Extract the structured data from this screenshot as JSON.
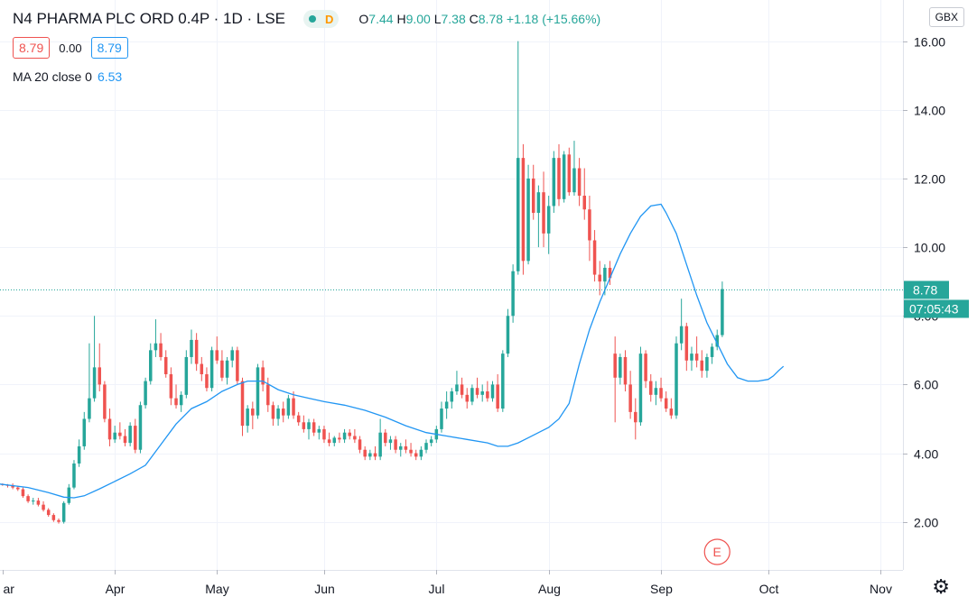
{
  "header": {
    "symbol": "N4 PHARMA PLC ORD 0.4P · 1D · LSE",
    "status_letter": "D",
    "ohlc": {
      "o_label": "O",
      "o": "7.44",
      "h_label": "H",
      "h": "9.00",
      "l_label": "L",
      "l": "7.38",
      "c_label": "C",
      "c": "8.78",
      "change": "+1.18 (+15.66%)"
    },
    "bid": "8.79",
    "spread": "0.00",
    "ask": "8.79",
    "ma_label": "MA 20 close 0",
    "ma_value": "6.53",
    "currency": "GBX"
  },
  "colors": {
    "up": "#26a69a",
    "down": "#ef5350",
    "ma": "#2196f3",
    "grid": "#f0f3fa",
    "axis": "#131722",
    "earnings": "#ef5350"
  },
  "icons": {
    "settings": "gear-icon",
    "status": "market-status-icon"
  },
  "chart_data": {
    "type": "candlestick",
    "y_ticks": [
      "2.00",
      "4.00",
      "6.00",
      "8.00",
      "10.00",
      "12.00",
      "14.00",
      "16.00"
    ],
    "ylim": [
      0.6,
      17.2
    ],
    "x_labels": [
      {
        "label": "ar",
        "day": 0
      },
      {
        "label": "Apr",
        "day": 22
      },
      {
        "label": "May",
        "day": 42
      },
      {
        "label": "Jun",
        "day": 63
      },
      {
        "label": "Jul",
        "day": 85
      },
      {
        "label": "Aug",
        "day": 107
      },
      {
        "label": "Sep",
        "day": 129
      },
      {
        "label": "Oct",
        "day": 150
      },
      {
        "label": "Nov",
        "day": 172
      }
    ],
    "x_range": [
      -0.5,
      176.4
    ],
    "last_price": {
      "value": 8.78,
      "label": "8.78",
      "countdown": "07:05:43"
    },
    "earnings": {
      "day": 140,
      "label": "E"
    },
    "candles": [
      [
        3.1,
        3.12,
        3.05,
        3.08
      ],
      [
        3.08,
        3.1,
        3.0,
        3.05
      ],
      [
        3.05,
        3.12,
        2.95,
        3.0
      ],
      [
        3.0,
        3.05,
        2.9,
        2.95
      ],
      [
        2.95,
        3.0,
        2.7,
        2.75
      ],
      [
        2.75,
        2.8,
        2.55,
        2.6
      ],
      [
        2.6,
        2.7,
        2.5,
        2.62
      ],
      [
        2.62,
        2.7,
        2.45,
        2.5
      ],
      [
        2.5,
        2.6,
        2.3,
        2.35
      ],
      [
        2.35,
        2.4,
        2.15,
        2.2
      ],
      [
        2.2,
        2.25,
        2.0,
        2.05
      ],
      [
        2.05,
        2.1,
        1.95,
        2.0
      ],
      [
        2.0,
        2.6,
        1.95,
        2.55
      ],
      [
        2.55,
        3.1,
        2.5,
        3.0
      ],
      [
        3.0,
        3.8,
        2.95,
        3.7
      ],
      [
        3.7,
        4.4,
        3.6,
        4.2
      ],
      [
        4.2,
        5.2,
        4.1,
        5.0
      ],
      [
        5.0,
        7.2,
        4.9,
        5.6
      ],
      [
        5.6,
        8.0,
        5.5,
        6.5
      ],
      [
        6.5,
        7.2,
        5.8,
        6.0
      ],
      [
        6.0,
        6.1,
        4.9,
        5.0
      ],
      [
        5.0,
        5.3,
        4.2,
        4.4
      ],
      [
        4.4,
        4.8,
        4.3,
        4.6
      ],
      [
        4.6,
        4.9,
        4.4,
        4.5
      ],
      [
        4.5,
        4.7,
        4.2,
        4.3
      ],
      [
        4.3,
        4.9,
        4.2,
        4.8
      ],
      [
        4.8,
        5.0,
        4.0,
        4.1
      ],
      [
        4.1,
        5.5,
        4.0,
        5.4
      ],
      [
        5.4,
        6.2,
        5.3,
        6.1
      ],
      [
        6.1,
        7.2,
        6.0,
        7.0
      ],
      [
        7.0,
        7.9,
        6.8,
        7.2
      ],
      [
        7.2,
        7.5,
        6.7,
        6.8
      ],
      [
        6.8,
        7.0,
        6.2,
        6.3
      ],
      [
        6.3,
        6.5,
        5.4,
        5.6
      ],
      [
        5.6,
        6.0,
        5.3,
        5.4
      ],
      [
        5.4,
        5.8,
        5.2,
        5.7
      ],
      [
        5.7,
        7.0,
        5.6,
        6.8
      ],
      [
        6.8,
        7.6,
        6.6,
        7.3
      ],
      [
        7.3,
        7.5,
        6.4,
        6.6
      ],
      [
        6.6,
        6.8,
        6.1,
        6.3
      ],
      [
        6.3,
        6.5,
        5.8,
        5.9
      ],
      [
        5.9,
        7.1,
        5.8,
        7.0
      ],
      [
        7.0,
        7.4,
        6.6,
        6.7
      ],
      [
        6.7,
        7.0,
        6.1,
        6.2
      ],
      [
        6.2,
        6.8,
        6.0,
        6.7
      ],
      [
        6.7,
        7.1,
        6.5,
        7.0
      ],
      [
        7.0,
        7.1,
        6.0,
        6.1
      ],
      [
        6.1,
        6.2,
        4.5,
        4.8
      ],
      [
        4.8,
        5.4,
        4.6,
        5.3
      ],
      [
        5.3,
        5.5,
        4.7,
        5.1
      ],
      [
        5.1,
        6.6,
        5.0,
        6.5
      ],
      [
        6.5,
        6.7,
        5.8,
        6.0
      ],
      [
        6.0,
        6.2,
        5.2,
        5.4
      ],
      [
        5.4,
        5.5,
        4.8,
        5.0
      ],
      [
        5.0,
        5.4,
        4.8,
        5.3
      ],
      [
        5.3,
        5.5,
        4.9,
        5.1
      ],
      [
        5.1,
        5.7,
        5.0,
        5.6
      ],
      [
        5.6,
        5.8,
        5.0,
        5.1
      ],
      [
        5.1,
        5.2,
        4.8,
        4.9
      ],
      [
        4.9,
        5.1,
        4.6,
        4.7
      ],
      [
        4.7,
        5.0,
        4.4,
        4.9
      ],
      [
        4.9,
        5.0,
        4.5,
        4.6
      ],
      [
        4.6,
        4.8,
        4.4,
        4.7
      ],
      [
        4.7,
        4.8,
        4.3,
        4.4
      ],
      [
        4.4,
        4.6,
        4.2,
        4.3
      ],
      [
        4.3,
        4.5,
        4.2,
        4.45
      ],
      [
        4.45,
        4.6,
        4.3,
        4.4
      ],
      [
        4.4,
        4.7,
        4.3,
        4.6
      ],
      [
        4.6,
        4.7,
        4.4,
        4.5
      ],
      [
        4.5,
        4.7,
        4.3,
        4.4
      ],
      [
        4.4,
        4.5,
        4.0,
        4.1
      ],
      [
        4.1,
        4.2,
        3.8,
        3.9
      ],
      [
        3.9,
        4.1,
        3.8,
        4.0
      ],
      [
        4.0,
        4.2,
        3.8,
        3.9
      ],
      [
        3.9,
        5.0,
        3.8,
        4.6
      ],
      [
        4.6,
        4.7,
        4.2,
        4.3
      ],
      [
        4.3,
        4.5,
        4.1,
        4.4
      ],
      [
        4.4,
        4.5,
        4.0,
        4.1
      ],
      [
        4.1,
        4.3,
        3.9,
        4.2
      ],
      [
        4.2,
        4.4,
        4.0,
        4.1
      ],
      [
        4.1,
        4.3,
        3.9,
        4.0
      ],
      [
        4.0,
        4.1,
        3.8,
        3.9
      ],
      [
        3.9,
        4.2,
        3.8,
        4.1
      ],
      [
        4.1,
        4.4,
        4.0,
        4.3
      ],
      [
        4.3,
        4.5,
        4.2,
        4.4
      ],
      [
        4.4,
        4.8,
        4.3,
        4.7
      ],
      [
        4.7,
        5.5,
        4.6,
        5.3
      ],
      [
        5.3,
        5.8,
        5.0,
        5.5
      ],
      [
        5.5,
        5.9,
        5.3,
        5.8
      ],
      [
        5.8,
        6.4,
        5.7,
        6.0
      ],
      [
        6.0,
        6.2,
        5.6,
        5.7
      ],
      [
        5.7,
        5.9,
        5.3,
        5.5
      ],
      [
        5.5,
        6.0,
        5.4,
        5.9
      ],
      [
        5.9,
        6.2,
        5.6,
        5.7
      ],
      [
        5.7,
        6.0,
        5.5,
        5.8
      ],
      [
        5.8,
        6.1,
        5.5,
        5.6
      ],
      [
        5.6,
        6.1,
        5.5,
        6.0
      ],
      [
        6.0,
        6.3,
        5.2,
        5.3
      ],
      [
        5.3,
        7.0,
        5.2,
        6.9
      ],
      [
        6.9,
        8.2,
        6.8,
        8.0
      ],
      [
        8.0,
        9.5,
        7.8,
        9.3
      ],
      [
        9.3,
        16.0,
        9.2,
        12.6
      ],
      [
        12.6,
        13.0,
        9.2,
        9.6
      ],
      [
        9.6,
        12.4,
        9.5,
        12.0
      ],
      [
        12.0,
        12.4,
        10.8,
        11.0
      ],
      [
        11.0,
        11.8,
        10.0,
        11.6
      ],
      [
        11.6,
        12.2,
        10.0,
        10.4
      ],
      [
        10.4,
        11.5,
        9.8,
        11.2
      ],
      [
        11.2,
        12.8,
        11.0,
        12.6
      ],
      [
        12.6,
        13.0,
        11.2,
        11.4
      ],
      [
        11.4,
        12.8,
        11.3,
        12.7
      ],
      [
        12.7,
        12.9,
        11.5,
        11.6
      ],
      [
        11.6,
        13.1,
        11.5,
        12.3
      ],
      [
        12.3,
        12.6,
        11.2,
        11.5
      ],
      [
        11.5,
        12.3,
        10.8,
        11.1
      ],
      [
        11.1,
        11.5,
        9.6,
        10.2
      ],
      [
        10.2,
        10.5,
        9.0,
        9.2
      ],
      [
        9.2,
        9.6,
        8.6,
        9.0
      ],
      [
        9.0,
        9.5,
        8.6,
        9.4
      ],
      [
        9.4,
        9.6,
        8.9,
        9.1
      ],
      [
        6.9,
        7.4,
        4.9,
        6.2
      ],
      [
        6.2,
        6.9,
        6.0,
        6.8
      ],
      [
        6.8,
        7.0,
        5.8,
        6.0
      ],
      [
        6.0,
        6.4,
        5.0,
        5.2
      ],
      [
        5.2,
        5.6,
        4.4,
        4.9
      ],
      [
        4.9,
        7.1,
        4.8,
        6.9
      ],
      [
        6.9,
        7.0,
        5.9,
        6.1
      ],
      [
        6.1,
        6.3,
        5.5,
        5.7
      ],
      [
        5.7,
        6.1,
        5.4,
        5.9
      ],
      [
        5.9,
        6.2,
        5.5,
        5.6
      ],
      [
        5.6,
        5.8,
        5.2,
        5.3
      ],
      [
        5.3,
        5.6,
        5.0,
        5.1
      ],
      [
        5.1,
        7.4,
        5.0,
        7.2
      ],
      [
        7.2,
        8.5,
        7.0,
        7.7
      ],
      [
        7.7,
        7.8,
        6.4,
        6.7
      ],
      [
        6.7,
        7.1,
        6.4,
        6.9
      ],
      [
        6.9,
        7.4,
        6.5,
        6.7
      ],
      [
        6.7,
        7.0,
        6.2,
        6.4
      ],
      [
        6.4,
        6.9,
        6.2,
        6.8
      ],
      [
        6.8,
        7.2,
        6.6,
        7.1
      ],
      [
        7.1,
        7.6,
        7.0,
        7.44
      ],
      [
        7.44,
        9.0,
        7.38,
        8.78
      ]
    ],
    "ma20": [
      [
        -0.5,
        3.1
      ],
      [
        5,
        3.0
      ],
      [
        9,
        2.85
      ],
      [
        12,
        2.72
      ],
      [
        14,
        2.7
      ],
      [
        16,
        2.76
      ],
      [
        19,
        2.96
      ],
      [
        22,
        3.18
      ],
      [
        25,
        3.4
      ],
      [
        28,
        3.65
      ],
      [
        31,
        4.25
      ],
      [
        34,
        4.85
      ],
      [
        37,
        5.3
      ],
      [
        40,
        5.5
      ],
      [
        43,
        5.8
      ],
      [
        46,
        6.0
      ],
      [
        48,
        6.1
      ],
      [
        51,
        6.1
      ],
      [
        54,
        5.85
      ],
      [
        57,
        5.7
      ],
      [
        60,
        5.6
      ],
      [
        63,
        5.5
      ],
      [
        67,
        5.4
      ],
      [
        71,
        5.25
      ],
      [
        75,
        5.05
      ],
      [
        79,
        4.8
      ],
      [
        83,
        4.6
      ],
      [
        87,
        4.5
      ],
      [
        91,
        4.4
      ],
      [
        95,
        4.3
      ],
      [
        97,
        4.2
      ],
      [
        99,
        4.2
      ],
      [
        101,
        4.3
      ],
      [
        103,
        4.45
      ],
      [
        105,
        4.6
      ],
      [
        107,
        4.75
      ],
      [
        109,
        5.0
      ],
      [
        111,
        5.45
      ],
      [
        113,
        6.6
      ],
      [
        115,
        7.6
      ],
      [
        117,
        8.4
      ],
      [
        119,
        9.1
      ],
      [
        121,
        9.8
      ],
      [
        123,
        10.4
      ],
      [
        125,
        10.9
      ],
      [
        127,
        11.2
      ],
      [
        129,
        11.25
      ],
      [
        130,
        11.0
      ],
      [
        132,
        10.4
      ],
      [
        134,
        9.5
      ],
      [
        136,
        8.6
      ],
      [
        138,
        7.8
      ],
      [
        140,
        7.2
      ],
      [
        142,
        6.6
      ],
      [
        144,
        6.2
      ],
      [
        146,
        6.1
      ],
      [
        148,
        6.1
      ],
      [
        150,
        6.15
      ],
      [
        151,
        6.25
      ],
      [
        152,
        6.4
      ],
      [
        153,
        6.53
      ]
    ]
  }
}
